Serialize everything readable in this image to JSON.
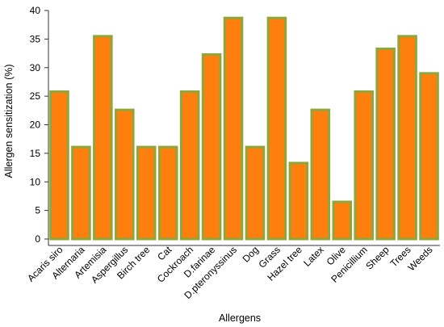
{
  "chart_data": {
    "type": "bar",
    "title": "",
    "xlabel": "Allergens",
    "ylabel": "Allergen sensitization (%)",
    "ylim": [
      0,
      40
    ],
    "yticks": [
      0,
      5,
      10,
      15,
      20,
      25,
      30,
      35,
      40
    ],
    "grid": false,
    "legend": "none",
    "categories": [
      "Acaris siro",
      "Alternaria",
      "Artemisia",
      "Aspergillus",
      "Birch tree",
      "Cat",
      "Cockroach",
      "D.farinae",
      "D.pteronyssinus",
      "Dog",
      "Grass",
      "Hazel tree",
      "Latex",
      "Olive",
      "Penicillium",
      "Sheep",
      "Trees",
      "Weeds"
    ],
    "values": [
      25.8,
      16.1,
      35.5,
      22.6,
      16.1,
      16.1,
      25.8,
      32.3,
      38.7,
      16.1,
      38.7,
      13.3,
      22.6,
      6.5,
      25.8,
      33.3,
      35.5,
      29.0
    ],
    "colors": {
      "bar_fill": "#ff7f0e",
      "bar_edge": "#8fa73a",
      "axis": "#333333",
      "text": "#000000"
    }
  }
}
